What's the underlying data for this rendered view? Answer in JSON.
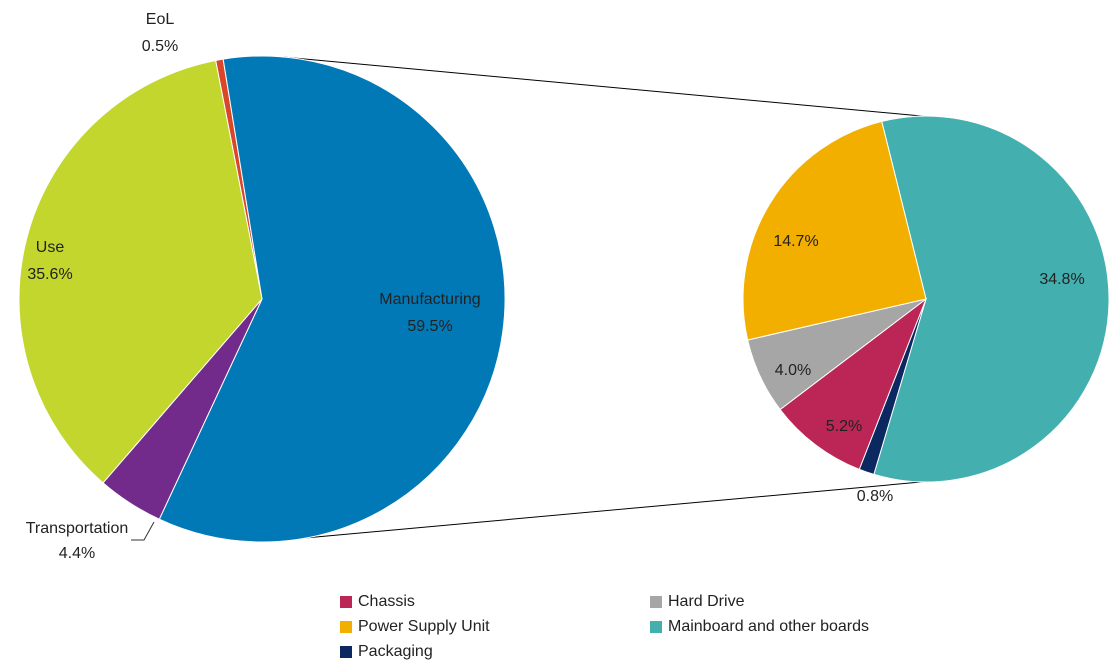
{
  "chart_data": [
    {
      "type": "pie",
      "slices": [
        {
          "label": "EoL",
          "value": 0.5,
          "value_label": "0.5%",
          "color": "#D9462A"
        },
        {
          "label": "Manufacturing",
          "value": 59.5,
          "value_label": "59.5%",
          "color": "#0079B6"
        },
        {
          "label": "Transportation",
          "value": 4.4,
          "value_label": "4.4%",
          "color": "#722B8B"
        },
        {
          "label": "Use",
          "value": 35.6,
          "value_label": "35.6%",
          "color": "#C2D62E"
        }
      ]
    },
    {
      "type": "pie",
      "breakdown_of": "Manufacturing",
      "slices": [
        {
          "label": "Mainboard and other boards",
          "value": 34.8,
          "value_label": "34.8%",
          "color": "#44AFAF"
        },
        {
          "label": "Packaging",
          "value": 0.8,
          "value_label": "0.8%",
          "color": "#0B2860"
        },
        {
          "label": "Chassis",
          "value": 5.2,
          "value_label": "5.2%",
          "color": "#BB2656"
        },
        {
          "label": "Hard Drive",
          "value": 4.0,
          "value_label": "4.0%",
          "color": "#A6A6A6"
        },
        {
          "label": "Power Supply Unit",
          "value": 14.7,
          "value_label": "14.7%",
          "color": "#F2AF00"
        }
      ],
      "legend": [
        {
          "label": "Chassis",
          "color": "#BB2656"
        },
        {
          "label": "Hard Drive",
          "color": "#A6A6A6"
        },
        {
          "label": "Power Supply Unit",
          "color": "#F2AF00"
        },
        {
          "label": "Mainboard and other boards",
          "color": "#44AFAF"
        },
        {
          "label": "Packaging",
          "color": "#0B2860"
        }
      ]
    }
  ]
}
